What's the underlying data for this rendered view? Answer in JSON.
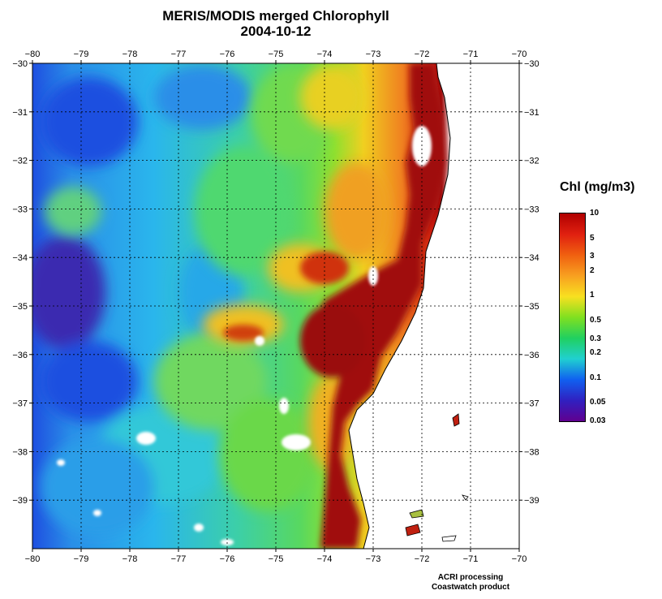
{
  "title": {
    "line1": "MERIS/MODIS merged Chlorophyll",
    "line2": "2004-10-12"
  },
  "map": {
    "lon_range": [
      -80,
      -70
    ],
    "lat_range": [
      -40,
      -30
    ],
    "x_ticks": [
      -80,
      -79,
      -78,
      -77,
      -76,
      -75,
      -74,
      -73,
      -72,
      -71,
      -70
    ],
    "y_ticks": [
      -30,
      -31,
      -32,
      -33,
      -34,
      -35,
      -36,
      -37,
      -38,
      -39
    ],
    "grid": "dotted",
    "colors": {
      "very_low": "#3a1a9a",
      "low": "#1a4fe0",
      "low_mid": "#21b9ef",
      "mid": "#3ed97a",
      "mid_high": "#7ae038",
      "high": "#f5d81e",
      "very_high": "#e84a14",
      "max": "#9a0c0c",
      "land": "#ffffff"
    }
  },
  "legend": {
    "title": "Chl (mg/m3)",
    "labels": [
      "10",
      "5",
      "3",
      "2",
      "1",
      "0.5",
      "0.3",
      "0.2",
      "0.1",
      "0.05",
      "0.03"
    ],
    "gradient": [
      "#b00000",
      "#e02010",
      "#f06010",
      "#f8a020",
      "#f8e020",
      "#80e020",
      "#20d060",
      "#20d0d0",
      "#1060f0",
      "#3020c0",
      "#600090"
    ]
  },
  "credit": {
    "line1": "ACRI processing",
    "line2": "Coastwatch product"
  }
}
